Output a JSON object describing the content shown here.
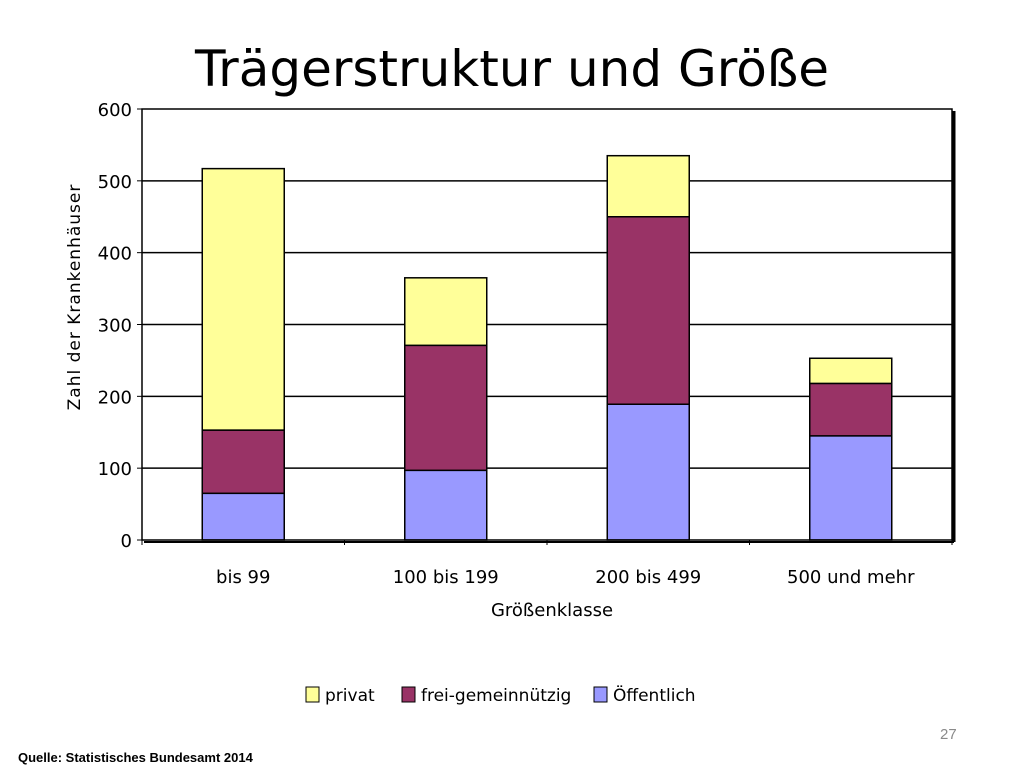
{
  "slide": {
    "title": "Trägerstruktur und Größe",
    "source": "Quelle: Statistisches Bundesamt 2014",
    "page_number": "27"
  },
  "chart_data": {
    "type": "bar",
    "stacked": true,
    "categories": [
      "bis 99",
      "100 bis 199",
      "200 bis 499",
      "500 und mehr"
    ],
    "series": [
      {
        "name": "Öffentlich",
        "values": [
          65,
          97,
          189,
          145
        ],
        "color": "#9999ff"
      },
      {
        "name": "frei-gemeinnützig",
        "values": [
          88,
          174,
          261,
          73
        ],
        "color": "#993366"
      },
      {
        "name": "privat",
        "values": [
          364,
          94,
          85,
          35
        ],
        "color": "#ffff99"
      }
    ],
    "legend_order": [
      "privat",
      "frei-gemeinnützig",
      "Öffentlich"
    ],
    "xlabel": "Größenklasse",
    "ylabel": "Zahl der Krankenhäuser",
    "ylim": [
      0,
      600
    ],
    "yticks": [
      0,
      100,
      200,
      300,
      400,
      500,
      600
    ],
    "grid": true,
    "legend_position": "bottom"
  }
}
